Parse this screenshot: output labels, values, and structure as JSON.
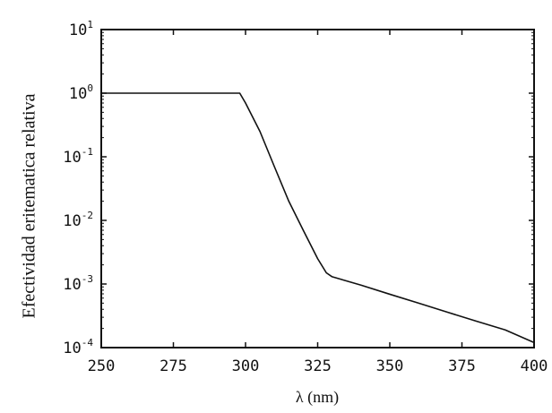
{
  "chart_data": {
    "type": "line",
    "title": "",
    "xlabel": "λ (nm)",
    "ylabel": "Efectividad eritematica relativa",
    "xlim": [
      250,
      400
    ],
    "ylim": [
      0.0001,
      10
    ],
    "y_scale": "log",
    "grid": false,
    "x_ticks": [
      250,
      275,
      300,
      325,
      350,
      375,
      400
    ],
    "x_tick_labels": [
      "250",
      "275",
      "300",
      "325",
      "350",
      "375",
      "400"
    ],
    "y_ticks": [
      10,
      1,
      0.1,
      0.01,
      0.001,
      0.0001
    ],
    "y_tick_labels": [
      {
        "base": "10",
        "exp": "1"
      },
      {
        "base": "10",
        "exp": "0"
      },
      {
        "base": "10",
        "exp": "-1"
      },
      {
        "base": "10",
        "exp": "-2"
      },
      {
        "base": "10",
        "exp": "-3"
      },
      {
        "base": "10",
        "exp": "-4"
      }
    ],
    "series": [
      {
        "color": "#111111",
        "x": [
          250,
          298,
          300,
          305,
          310,
          315,
          320,
          325,
          328,
          330,
          340,
          350,
          360,
          370,
          380,
          390,
          400
        ],
        "y": [
          1,
          1,
          0.7,
          0.25,
          0.07,
          0.02,
          0.007,
          0.0025,
          0.0015,
          0.0013,
          0.00096,
          0.00069,
          0.0005,
          0.00036,
          0.00026,
          0.00019,
          0.00012
        ]
      }
    ]
  }
}
